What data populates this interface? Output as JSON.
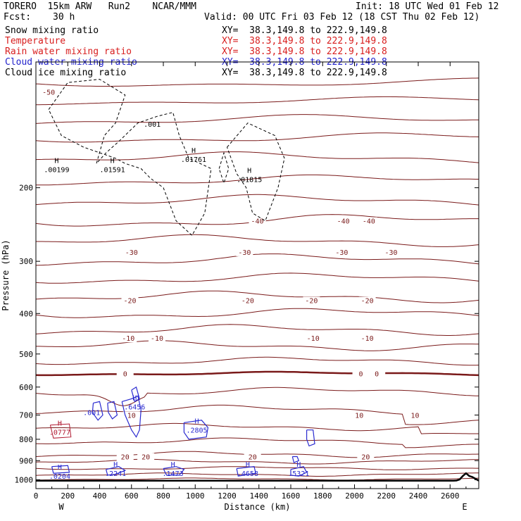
{
  "header": {
    "model": "TORERO  15km ARW   Run2    NCAR/MMM",
    "init": "Init: 18 UTC Wed 01 Feb 12",
    "fcst_label": "Fcst:",
    "fcst_value": "30 h",
    "valid": "Valid: 00 UTC Fri 03 Feb 12 (18 CST Thu 02 Feb 12)"
  },
  "fields": [
    {
      "name": "Snow mixing ratio",
      "color": "#000000",
      "xy": "XY=  38.3,149.8 to 222.9,149.8"
    },
    {
      "name": "Temperature",
      "color": "#d81e1e",
      "xy": "XY=  38.3,149.8 to 222.9,149.8"
    },
    {
      "name": "Rain water mixing ratio",
      "color": "#d81e1e",
      "xy": "XY=  38.3,149.8 to 222.9,149.8"
    },
    {
      "name": "Cloud water mixing ratio",
      "color": "#2222cc",
      "xy": "XY=  38.3,149.8 to 222.9,149.8"
    },
    {
      "name": "Cloud ice mixing ratio",
      "color": "#000000",
      "xy": "XY=  38.3,149.8 to 222.9,149.8"
    }
  ],
  "colors": {
    "temperature": "#7a1a1a",
    "cloud_water": "#2a2ad0",
    "snow": "#000000",
    "rain": "#b01830",
    "terrain": "#000000"
  },
  "chart_data": {
    "type": "contour cross-section",
    "xlabel": "Distance (km)",
    "ylabel": "Pressure (hPa)",
    "x_ticks": [
      0,
      200,
      400,
      600,
      800,
      1000,
      1200,
      1400,
      1600,
      1800,
      2000,
      2200,
      2400,
      2600
    ],
    "y_ticks": [
      200,
      300,
      400,
      500,
      600,
      700,
      800,
      900,
      1000
    ],
    "xlim": [
      0,
      2780
    ],
    "ylim": [
      1050,
      100
    ],
    "y_scale": "log",
    "x_end_labels": {
      "left": "W",
      "right": "E"
    },
    "temperature_levels": [
      {
        "value": -50,
        "labels": [
          {
            "x": 80,
            "text": "-50"
          }
        ]
      },
      {
        "value": -40,
        "labels": [
          {
            "x": 1390,
            "text": "-40"
          },
          {
            "x": 1930,
            "text": "-40"
          },
          {
            "x": 2090,
            "text": "-40"
          }
        ]
      },
      {
        "value": -30,
        "labels": [
          {
            "x": 600,
            "text": "-30"
          },
          {
            "x": 1310,
            "text": "-30"
          },
          {
            "x": 1920,
            "text": "-30"
          },
          {
            "x": 2230,
            "text": "-30"
          }
        ]
      },
      {
        "value": -20,
        "labels": [
          {
            "x": 590,
            "text": "-20"
          },
          {
            "x": 1330,
            "text": "-20"
          },
          {
            "x": 1730,
            "text": "-20"
          },
          {
            "x": 2080,
            "text": "-20"
          }
        ]
      },
      {
        "value": -10,
        "labels": [
          {
            "x": 580,
            "text": "-10"
          },
          {
            "x": 760,
            "text": "-10"
          },
          {
            "x": 1740,
            "text": "-10"
          },
          {
            "x": 2080,
            "text": "-10"
          }
        ]
      },
      {
        "value": 0,
        "labels": [
          {
            "x": 560,
            "text": "0"
          },
          {
            "x": 2040,
            "text": "0"
          },
          {
            "x": 2140,
            "text": "0"
          }
        ]
      },
      {
        "value": 10,
        "labels": [
          {
            "x": 600,
            "text": "10"
          },
          {
            "x": 2380,
            "text": "10"
          },
          {
            "x": 2030,
            "text": "10"
          }
        ]
      },
      {
        "value": 20,
        "labels": [
          {
            "x": 560,
            "text": "20"
          },
          {
            "x": 690,
            "text": "20"
          },
          {
            "x": 1360,
            "text": "20"
          },
          {
            "x": 2070,
            "text": "20"
          }
        ]
      }
    ],
    "snow_maxima": [
      {
        "x": 130,
        "p": 180,
        "value": ".00199"
      },
      {
        "x": 480,
        "p": 180,
        "value": ".01591"
      },
      {
        "x": 990,
        "p": 170,
        "value": ".01761"
      },
      {
        "x": 1340,
        "p": 190,
        "value": ".01815"
      }
    ],
    "snow_contour_labels": [
      {
        "x": 730,
        "p": 143,
        "value": ".001"
      }
    ],
    "cloud_water_maxima": [
      {
        "x": 620,
        "p": 665,
        "value": ".6456"
      },
      {
        "x": 1010,
        "p": 757,
        "value": ".2805"
      },
      {
        "x": 150,
        "p": 975,
        "value": ".0204"
      },
      {
        "x": 500,
        "p": 960,
        "value": ".2241"
      },
      {
        "x": 860,
        "p": 960,
        "value": ".1473"
      },
      {
        "x": 1330,
        "p": 960,
        "value": ".4658"
      },
      {
        "x": 1650,
        "p": 960,
        "value": ".5321"
      }
    ],
    "cloud_water_contour_labels": [
      {
        "x": 350,
        "p": 700,
        "value": ".001"
      }
    ],
    "rain_maxima": [
      {
        "x": 150,
        "p": 765,
        "value": ".0777"
      }
    ]
  }
}
